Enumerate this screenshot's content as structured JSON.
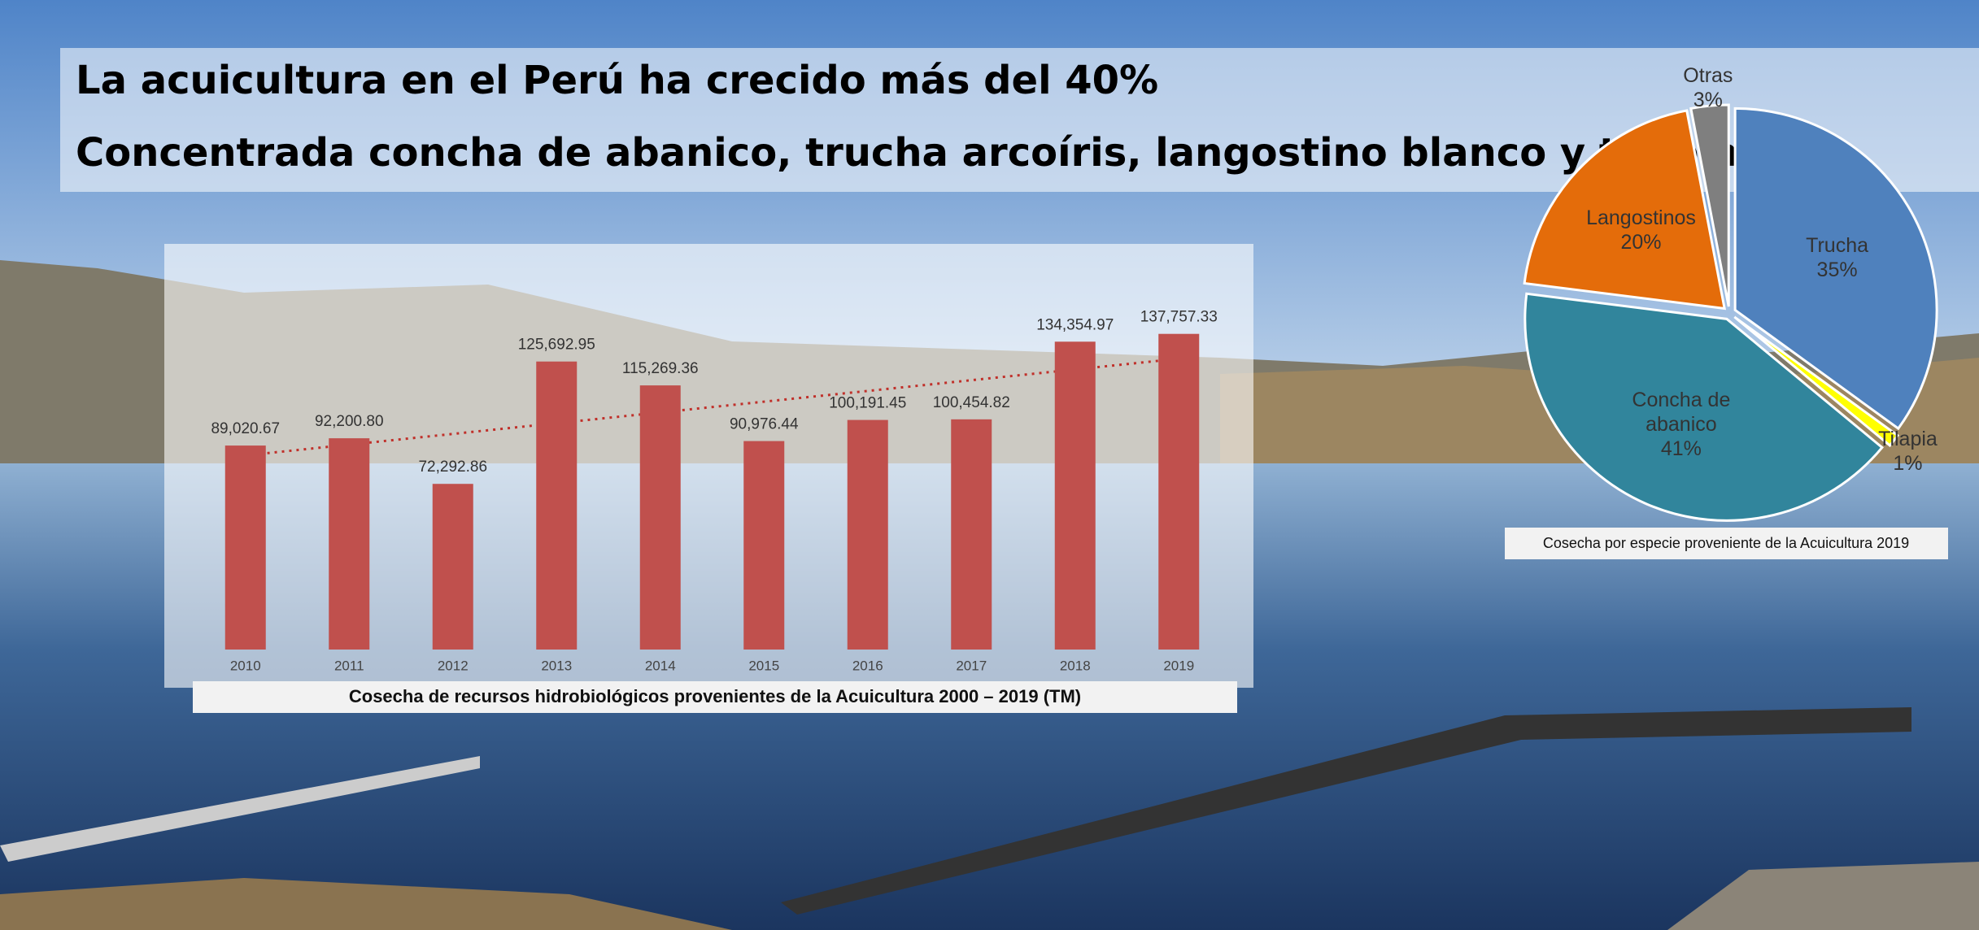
{
  "header": {
    "lines": [
      "La acuicultura en el Perú ha crecido más del 40%",
      "Concentrada concha de abanico, trucha arcoíris, langostino blanco y tilapia"
    ]
  },
  "chart_data": [
    {
      "type": "bar",
      "title": "Cosecha de recursos hidrobiológicos provenientes de la Acuicultura 2000 – 2019 (TM)",
      "categories": [
        "2010",
        "2011",
        "2012",
        "2013",
        "2014",
        "2015",
        "2016",
        "2017",
        "2018",
        "2019"
      ],
      "values": [
        89020.67,
        92200.8,
        72292.86,
        125692.95,
        115269.36,
        90976.44,
        100191.45,
        100454.82,
        134354.97,
        137757.33
      ],
      "value_labels": [
        "89,020.67",
        "92,200.80",
        "72,292.86",
        "125,692.95",
        "115,269.36",
        "90,976.44",
        "100,191.45",
        "100,454.82",
        "134,354.97",
        "137,757.33"
      ],
      "color": "#c0504d",
      "ylim": [
        0,
        160000
      ],
      "trendline": true
    },
    {
      "type": "pie",
      "title": "Cosecha por especie proveniente de la Acuicultura 2019",
      "categories": [
        "Trucha",
        "Tilapia",
        "Concha de abanico",
        "Langostinos",
        "Otras"
      ],
      "values": [
        35,
        1,
        41,
        20,
        3
      ],
      "value_labels": [
        "35%",
        "1%",
        "41%",
        "20%",
        "3%"
      ],
      "colors": [
        "#4f81bd",
        "#ffff00",
        "#31859c",
        "#e46c0a",
        "#7f7f7f"
      ]
    }
  ]
}
